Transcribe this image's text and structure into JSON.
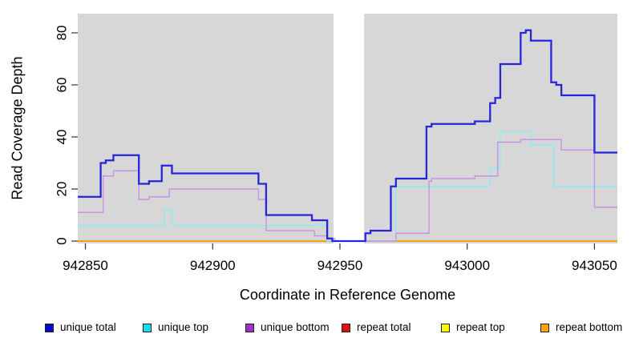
{
  "figure": {
    "background": "#ffffff"
  },
  "chart_data": {
    "type": "line",
    "title": "",
    "xlabel": "Coordinate in Reference Genome",
    "ylabel": "Read Coverage Depth",
    "xlim": [
      942847,
      943059
    ],
    "ylim": [
      0,
      88
    ],
    "x_ticks": [
      942850,
      942900,
      942950,
      943000,
      943050
    ],
    "y_ticks": [
      0,
      20,
      40,
      60,
      80
    ],
    "grid": false,
    "legend_position": "bottom",
    "plot_bg": "#d7d7d7",
    "axis_color": "#333333",
    "gap_region": {
      "x_start": 942947.5,
      "x_end": 942959.5,
      "color": "#ffffff"
    },
    "draw_layers": [
      "repeat total",
      "repeat top",
      "repeat bottom",
      "gap",
      "unique top",
      "unique bottom",
      "unique total"
    ],
    "series": [
      {
        "name": "unique total",
        "line_color": "#2525dd",
        "legend_color": "#0b0bce",
        "line_width": 2.3,
        "points": [
          [
            942847,
            17
          ],
          [
            942856,
            30
          ],
          [
            942858,
            31
          ],
          [
            942861,
            33
          ],
          [
            942871,
            22
          ],
          [
            942875,
            23
          ],
          [
            942880,
            29
          ],
          [
            942884,
            26
          ],
          [
            942918,
            22
          ],
          [
            942921,
            10
          ],
          [
            942939,
            8
          ],
          [
            942945,
            1
          ],
          [
            942947,
            0
          ],
          [
            942960,
            3
          ],
          [
            942962,
            4
          ],
          [
            942970,
            21
          ],
          [
            942972,
            24
          ],
          [
            942984,
            44
          ],
          [
            942986,
            45
          ],
          [
            943003,
            46
          ],
          [
            943009,
            53
          ],
          [
            943011,
            55
          ],
          [
            943013,
            68
          ],
          [
            943021,
            80
          ],
          [
            943023,
            81
          ],
          [
            943025,
            77
          ],
          [
            943033,
            61
          ],
          [
            943035,
            60
          ],
          [
            943037,
            56
          ],
          [
            943050,
            34
          ],
          [
            943059,
            34
          ]
        ]
      },
      {
        "name": "unique top",
        "line_color": "#87eef1",
        "legend_color": "#12dfe8",
        "line_width": 1.4,
        "points": [
          [
            942847,
            6
          ],
          [
            942881,
            12
          ],
          [
            942884,
            6
          ],
          [
            942945,
            0
          ],
          [
            942972,
            21
          ],
          [
            943009,
            28
          ],
          [
            943013,
            42
          ],
          [
            943025,
            37
          ],
          [
            943034,
            21
          ],
          [
            943059,
            21
          ]
        ]
      },
      {
        "name": "unique bottom",
        "line_color": "#c594e6",
        "legend_color": "#9933cc",
        "line_width": 1.4,
        "points": [
          [
            942847,
            11
          ],
          [
            942857,
            25
          ],
          [
            942861,
            27
          ],
          [
            942871,
            16
          ],
          [
            942875,
            17
          ],
          [
            942883,
            20
          ],
          [
            942918,
            16
          ],
          [
            942921,
            4
          ],
          [
            942940,
            2
          ],
          [
            942945,
            1
          ],
          [
            942948,
            0
          ],
          [
            942972,
            3
          ],
          [
            942985,
            23
          ],
          [
            942986,
            24
          ],
          [
            943003,
            25
          ],
          [
            943012,
            38
          ],
          [
            943021,
            39
          ],
          [
            943037,
            35
          ],
          [
            943050,
            13
          ],
          [
            943059,
            13
          ]
        ]
      },
      {
        "name": "repeat total",
        "line_color": "#cc2222",
        "legend_color": "#dd1111",
        "line_width": 1.4,
        "points": [
          [
            942847,
            0
          ],
          [
            943059,
            0
          ]
        ]
      },
      {
        "name": "repeat top",
        "line_color": "#f7f700",
        "legend_color": "#f7f700",
        "line_width": 1.4,
        "points": [
          [
            942847,
            0
          ],
          [
            943059,
            0
          ]
        ]
      },
      {
        "name": "repeat bottom",
        "line_color": "#ff9b0c",
        "legend_color": "#ffa40a",
        "line_width": 1.6,
        "points": [
          [
            942847,
            0
          ],
          [
            943059,
            0
          ]
        ]
      }
    ]
  }
}
